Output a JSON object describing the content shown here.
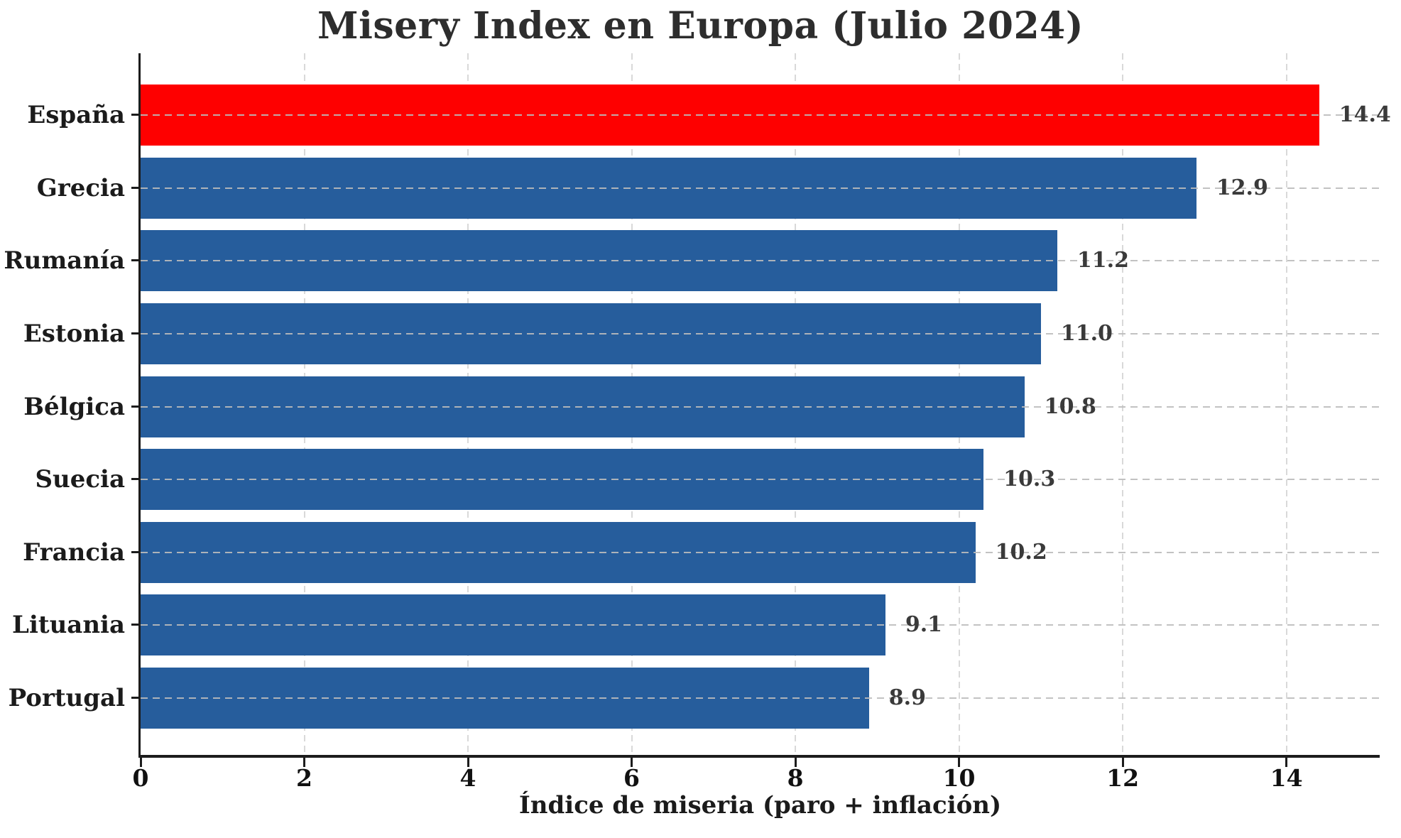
{
  "title": "Misery Index en Europa (Julio 2024)",
  "chart_data": {
    "type": "bar",
    "orientation": "horizontal",
    "title": "Misery Index en Europa (Julio 2024)",
    "xlabel": "Índice de miseria (paro + inflación)",
    "ylabel": "",
    "categories": [
      "España",
      "Grecia",
      "Rumanía",
      "Estonia",
      "Bélgica",
      "Suecia",
      "Francia",
      "Lituania",
      "Portugal"
    ],
    "values": [
      14.4,
      12.9,
      11.2,
      11.0,
      10.8,
      10.3,
      10.2,
      9.1,
      8.9
    ],
    "value_labels": [
      "14.4",
      "12.9",
      "11.2",
      "11.0",
      "10.8",
      "10.3",
      "10.2",
      "9.1",
      "8.9"
    ],
    "xticks": [
      0,
      2,
      4,
      6,
      8,
      10,
      12,
      14
    ],
    "xtick_labels": [
      "0",
      "2",
      "4",
      "6",
      "8",
      "10",
      "12",
      "14"
    ],
    "xlim": [
      0,
      15.14
    ],
    "legend": "none",
    "grid": {
      "style": "dashed",
      "vertical_at_xticks": true,
      "horizontal_at_bar_centers": true
    },
    "highlight_index": 0,
    "highlight_category": "España",
    "colors": {
      "highlight_bar": "#fe0000",
      "bar": "#265d9c",
      "grid": "#d9d9d9",
      "title_text": "#2d2d2d",
      "value_label": "#3a3a3a",
      "axis": "#1c1c1c"
    }
  }
}
